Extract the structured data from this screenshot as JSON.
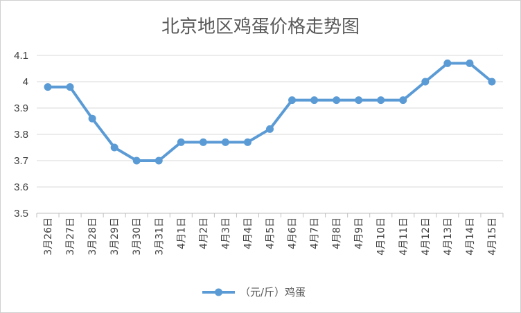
{
  "chart_data": {
    "type": "line",
    "title": "北京地区鸡蛋价格走势图",
    "xlabel": "",
    "ylabel": "",
    "ylim": [
      3.5,
      4.1
    ],
    "yticks": [
      "3.5",
      "3.6",
      "3.7",
      "3.8",
      "3.9",
      "4",
      "4.1"
    ],
    "grid": true,
    "legend_position": "bottom",
    "categories": [
      "3月26日",
      "3月27日",
      "3月28日",
      "3月29日",
      "3月30日",
      "3月31日",
      "4月1日",
      "4月2日",
      "4月3日",
      "4月4日",
      "4月5日",
      "4月6日",
      "4月7日",
      "4月8日",
      "4月9日",
      "4月10日",
      "4月11日",
      "4月12日",
      "4月13日",
      "4月14日",
      "4月15日"
    ],
    "series": [
      {
        "name": "（元/斤）鸡蛋",
        "color": "#5B9BD5",
        "values": [
          3.98,
          3.98,
          3.86,
          3.75,
          3.7,
          3.7,
          3.77,
          3.77,
          3.77,
          3.77,
          3.82,
          3.93,
          3.93,
          3.93,
          3.93,
          3.93,
          3.93,
          4.0,
          4.07,
          4.07,
          4.0
        ]
      }
    ]
  }
}
